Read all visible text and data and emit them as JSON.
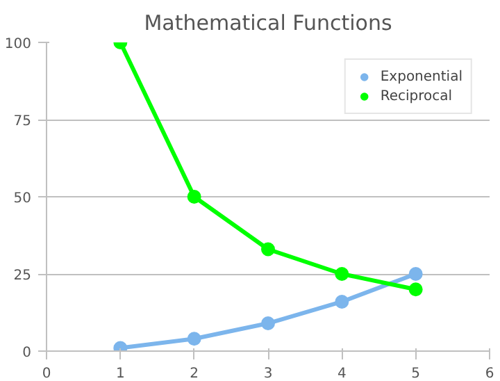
{
  "chart_data": {
    "type": "line",
    "title": "Mathematical Functions",
    "x": [
      1,
      2,
      3,
      4,
      5
    ],
    "series": [
      {
        "name": "Exponential",
        "color": "#7cb5ec",
        "values": [
          1,
          4,
          9,
          16,
          25
        ]
      },
      {
        "name": "Reciprocal",
        "color": "#00ff00",
        "values": [
          100,
          50,
          33,
          25,
          20
        ]
      }
    ],
    "xlim": [
      0,
      6
    ],
    "xticks": [
      0,
      1,
      2,
      3,
      4,
      5,
      6
    ],
    "ylim": [
      0,
      100
    ],
    "yticks": [
      0,
      25,
      50,
      75,
      100
    ],
    "grid": "y",
    "legend": "top right",
    "marker": "circle",
    "line_style": "solid"
  }
}
